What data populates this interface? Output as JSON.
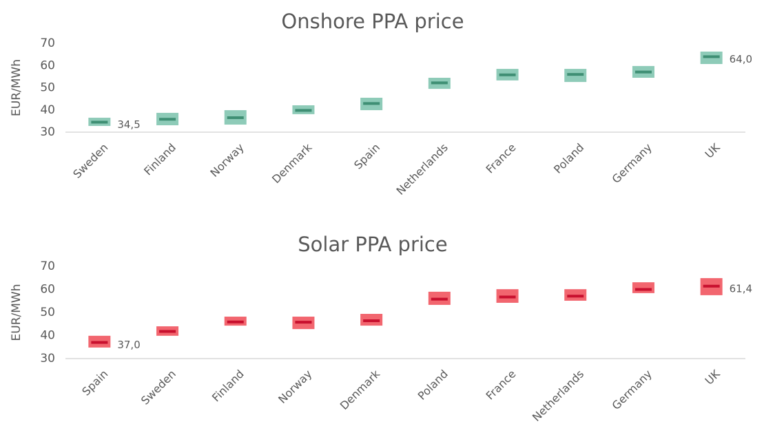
{
  "chart_data": [
    {
      "type": "range",
      "title": "Onshore PPA price",
      "y_label": "EUR/MWh",
      "categories": [
        "Sweden",
        "Finland",
        "Norway",
        "Denmark",
        "Spain",
        "Netherlands",
        "France",
        "Poland",
        "Germany",
        "UK"
      ],
      "low": [
        32.8,
        33.1,
        33.4,
        38.1,
        39.9,
        49.5,
        53.3,
        52.6,
        54.5,
        60.7
      ],
      "high": [
        36.5,
        38.7,
        39.9,
        42.1,
        45.5,
        54.5,
        58.5,
        58.5,
        59.8,
        66.3
      ],
      "values": [
        34.5,
        35.8,
        36.5,
        39.8,
        42.9,
        52.2,
        55.8,
        56.0,
        57.1,
        64.0
      ],
      "value_labels": [
        "34,5",
        null,
        null,
        null,
        null,
        null,
        null,
        null,
        null,
        "64,0"
      ],
      "box_color": "#8ecbb8",
      "color": "#3f8f74",
      "ylim": [
        30,
        70
      ],
      "yticks": [
        30,
        40,
        50,
        60,
        70
      ]
    },
    {
      "type": "range",
      "title": "Solar PPA price",
      "y_label": "EUR/MWh",
      "categories": [
        "Spain",
        "Sweden",
        "Finland",
        "Norway",
        "Denmark",
        "Poland",
        "France",
        "Netherlands",
        "Germany",
        "UK"
      ],
      "low": [
        34.8,
        39.9,
        44.3,
        42.8,
        44.3,
        53.3,
        54.2,
        55.1,
        58.4,
        57.5
      ],
      "high": [
        39.9,
        44.0,
        48.2,
        48.2,
        49.4,
        59.0,
        60.1,
        60.1,
        63.1,
        64.9
      ],
      "values": [
        37.0,
        41.8,
        45.9,
        45.8,
        46.4,
        55.8,
        56.7,
        57.1,
        60.0,
        61.4
      ],
      "value_labels": [
        "37,0",
        null,
        null,
        null,
        null,
        null,
        null,
        null,
        null,
        "61,4"
      ],
      "box_color": "#f2666f",
      "color": "#c8102e",
      "ylim": [
        30,
        70
      ],
      "yticks": [
        30,
        40,
        50,
        60,
        70
      ]
    }
  ]
}
